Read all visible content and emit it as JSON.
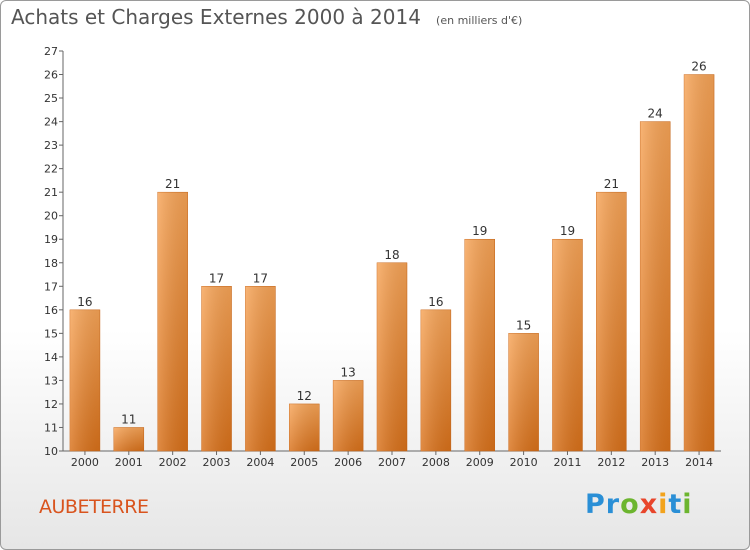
{
  "title": "Achats et Charges Externes 2000 à 2014",
  "unit": "(en milliers d'€)",
  "place": "AUBETERRE",
  "logo": {
    "letters": [
      "P",
      "r",
      "o",
      "x",
      "i",
      "t",
      "i"
    ],
    "colors": [
      "#2a8fd6",
      "#2a8fd6",
      "#6cb52f",
      "#e8452b",
      "#f2a31c",
      "#2a8fd6",
      "#6cb52f"
    ]
  },
  "chart_data": {
    "type": "bar",
    "title": "Achats et Charges Externes 2000 à 2014",
    "subtitle": "(en milliers d'€)",
    "categories": [
      "2000",
      "2001",
      "2002",
      "2003",
      "2004",
      "2005",
      "2006",
      "2007",
      "2008",
      "2009",
      "2010",
      "2011",
      "2012",
      "2013",
      "2014"
    ],
    "values": [
      16,
      11,
      21,
      17,
      17,
      12,
      13,
      18,
      16,
      19,
      15,
      19,
      21,
      24,
      26
    ],
    "ylim": [
      10,
      27
    ],
    "yticks": [
      10,
      11,
      12,
      13,
      14,
      15,
      16,
      17,
      18,
      19,
      20,
      21,
      22,
      23,
      24,
      25,
      26,
      27
    ],
    "grid": false,
    "legend": "none",
    "bar_color": "#f0922e"
  }
}
